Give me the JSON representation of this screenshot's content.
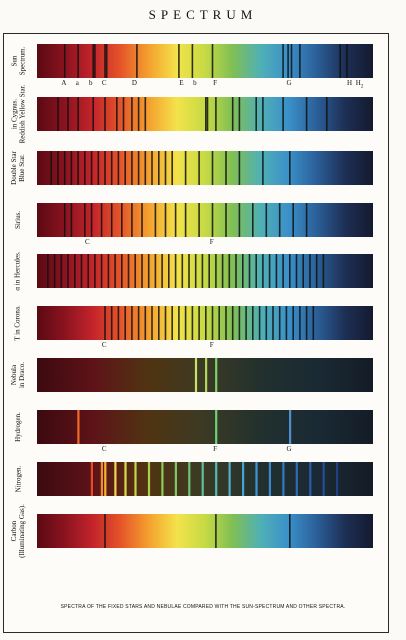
{
  "title": "SPECTRUM",
  "caption": "SPECTRA OF THE FIXED STARS AND NEBULAE COMPARED WITH THE SUN-SPECTRUM AND OTHER SPECTRA.",
  "colors": {
    "rainbow": [
      "#5a0a12",
      "#8b1320",
      "#c4242a",
      "#e5552a",
      "#f4a12e",
      "#f3e34a",
      "#c6da44",
      "#7fbf55",
      "#4fb0b6",
      "#3a8fc9",
      "#2b5f98",
      "#1d2f55",
      "#141a2e"
    ],
    "dark": [
      "#3b0a10",
      "#5e1318",
      "#503412",
      "#3a3a24",
      "#22302e",
      "#1a2a34",
      "#141c26"
    ],
    "line": "#111111"
  },
  "spectra": [
    {
      "label_lines": [
        "Sun",
        "Spectrum."
      ],
      "style": "rainbow",
      "lines": [
        0.08,
        0.12,
        0.165,
        0.17,
        0.2,
        0.205,
        0.295,
        0.42,
        0.46,
        0.52,
        0.73,
        0.745,
        0.755,
        0.78,
        0.9,
        0.92
      ],
      "marks": [
        {
          "text": "A",
          "pos": 0.08
        },
        {
          "text": "a",
          "pos": 0.12
        },
        {
          "text": "b",
          "pos": 0.16
        },
        {
          "text": "C",
          "pos": 0.2
        },
        {
          "text": "D",
          "pos": 0.29
        },
        {
          "text": "E",
          "pos": 0.43
        },
        {
          "text": "b",
          "pos": 0.47
        },
        {
          "text": "F",
          "pos": 0.53
        },
        {
          "text": "G",
          "pos": 0.75
        },
        {
          "text": "H",
          "pos": 0.93
        },
        {
          "text": "H",
          "pos": 0.96,
          "sub": "2"
        }
      ]
    },
    {
      "label_lines": [
        "in Cygnus.",
        "Reddish Yellow Star."
      ],
      "style": "rainbow",
      "lines": [
        0.06,
        0.09,
        0.12,
        0.165,
        0.2,
        0.235,
        0.255,
        0.28,
        0.3,
        0.32,
        0.5,
        0.505,
        0.53,
        0.58,
        0.6,
        0.65,
        0.67,
        0.73,
        0.8,
        0.86
      ],
      "marks": []
    },
    {
      "label_lines": [
        "Double Star",
        "Blue Star."
      ],
      "style": "rainbow",
      "lines": [
        0.04,
        0.06,
        0.08,
        0.1,
        0.12,
        0.14,
        0.16,
        0.18,
        0.2,
        0.22,
        0.24,
        0.26,
        0.28,
        0.3,
        0.32,
        0.34,
        0.36,
        0.38,
        0.4,
        0.44,
        0.48,
        0.52,
        0.56,
        0.6,
        0.67,
        0.75
      ],
      "marks": []
    },
    {
      "label_lines": [
        "Sirius."
      ],
      "style": "rainbow",
      "lines": [
        0.08,
        0.1,
        0.14,
        0.16,
        0.19,
        0.22,
        0.25,
        0.28,
        0.31,
        0.35,
        0.38,
        0.41,
        0.44,
        0.48,
        0.52,
        0.56,
        0.6,
        0.64,
        0.68,
        0.72,
        0.76,
        0.8
      ],
      "marks": [
        {
          "text": "C",
          "pos": 0.15
        },
        {
          "text": "F",
          "pos": 0.52
        }
      ]
    },
    {
      "label_lines": [
        "α in Hercules."
      ],
      "style": "rainbow",
      "lines": [
        0.03,
        0.05,
        0.07,
        0.09,
        0.11,
        0.13,
        0.15,
        0.17,
        0.19,
        0.21,
        0.23,
        0.25,
        0.27,
        0.29,
        0.31,
        0.33,
        0.35,
        0.37,
        0.39,
        0.41,
        0.43,
        0.45,
        0.47,
        0.49,
        0.51,
        0.53,
        0.55,
        0.57,
        0.59,
        0.61,
        0.63,
        0.65,
        0.67,
        0.69,
        0.71,
        0.73,
        0.75,
        0.77,
        0.79,
        0.81,
        0.83,
        0.85
      ],
      "marks": []
    },
    {
      "label_lines": [
        "T in Corona."
      ],
      "style": "rainbow",
      "lines": [
        0.2,
        0.22,
        0.24,
        0.26,
        0.28,
        0.3,
        0.32,
        0.34,
        0.36,
        0.38,
        0.4,
        0.42,
        0.44,
        0.46,
        0.48,
        0.5,
        0.52,
        0.54,
        0.56,
        0.58,
        0.6,
        0.62,
        0.64,
        0.66,
        0.68,
        0.7,
        0.72,
        0.74,
        0.76,
        0.78,
        0.8,
        0.82
      ],
      "marks": [
        {
          "text": "C",
          "pos": 0.2
        },
        {
          "text": "F",
          "pos": 0.52
        }
      ]
    },
    {
      "label_lines": [
        "Nebula",
        "in Draco."
      ],
      "style": "dark",
      "bright": [
        {
          "pos": 0.47,
          "color": "#c8e06a"
        },
        {
          "pos": 0.5,
          "color": "#b5d65c"
        },
        {
          "pos": 0.53,
          "color": "#7fd06a"
        }
      ],
      "marks": []
    },
    {
      "label_lines": [
        "Hydrogen."
      ],
      "style": "dark",
      "bright": [
        {
          "pos": 0.12,
          "color": "#f06a28"
        },
        {
          "pos": 0.53,
          "color": "#6fd07a"
        },
        {
          "pos": 0.75,
          "color": "#4f8fd0"
        }
      ],
      "marks": [
        {
          "text": "C",
          "pos": 0.2
        },
        {
          "text": "F",
          "pos": 0.53
        },
        {
          "text": "G",
          "pos": 0.75
        }
      ]
    },
    {
      "label_lines": [
        "Nitrogen."
      ],
      "style": "dark",
      "bright": [
        {
          "pos": 0.16,
          "color": "#e54a2a"
        },
        {
          "pos": 0.19,
          "color": "#f08a2e"
        },
        {
          "pos": 0.2,
          "color": "#f4b63a"
        },
        {
          "pos": 0.23,
          "color": "#efd84a"
        },
        {
          "pos": 0.26,
          "color": "#d6e04a"
        },
        {
          "pos": 0.29,
          "color": "#bfd84a"
        },
        {
          "pos": 0.33,
          "color": "#a8d04e"
        },
        {
          "pos": 0.37,
          "color": "#8fcc5a"
        },
        {
          "pos": 0.41,
          "color": "#7fc66a"
        },
        {
          "pos": 0.45,
          "color": "#6fc27a"
        },
        {
          "pos": 0.49,
          "color": "#62bea0"
        },
        {
          "pos": 0.53,
          "color": "#58b8b6"
        },
        {
          "pos": 0.57,
          "color": "#4fb0c8"
        },
        {
          "pos": 0.61,
          "color": "#48a2d0"
        },
        {
          "pos": 0.65,
          "color": "#4294d0"
        },
        {
          "pos": 0.69,
          "color": "#3c86cc"
        },
        {
          "pos": 0.73,
          "color": "#3678c6"
        },
        {
          "pos": 0.77,
          "color": "#306aba"
        },
        {
          "pos": 0.81,
          "color": "#2a5ca8"
        },
        {
          "pos": 0.85,
          "color": "#254e96"
        },
        {
          "pos": 0.89,
          "color": "#204284"
        }
      ],
      "marks": []
    },
    {
      "label_lines": [
        "Carbon",
        "(Illuminating Gas)."
      ],
      "style": "rainbow",
      "lines": [
        0.2,
        0.53,
        0.75
      ],
      "marks": []
    }
  ]
}
